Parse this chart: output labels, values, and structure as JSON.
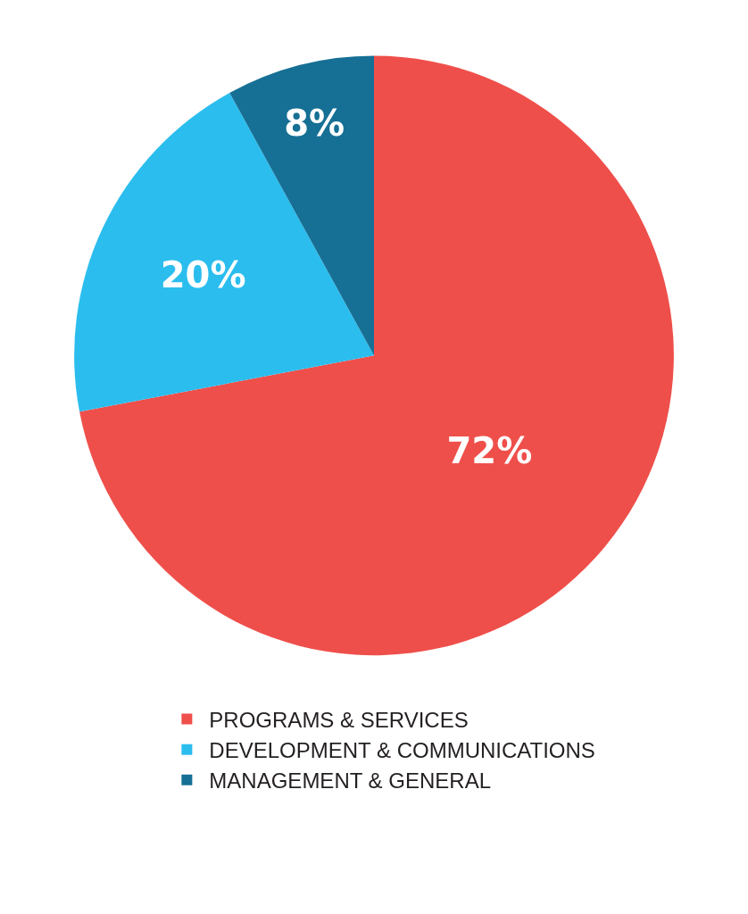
{
  "chart_data": {
    "type": "pie",
    "categories": [
      "PROGRAMS & SERVICES",
      "DEVELOPMENT & COMMUNICATIONS",
      "MANAGEMENT & GENERAL"
    ],
    "values": [
      72,
      20,
      8
    ],
    "colors": [
      "#ef4f4a",
      "#2bbdee",
      "#166f94"
    ],
    "value_labels": [
      "72%",
      "20%",
      "8%"
    ],
    "legend": "bottom"
  }
}
